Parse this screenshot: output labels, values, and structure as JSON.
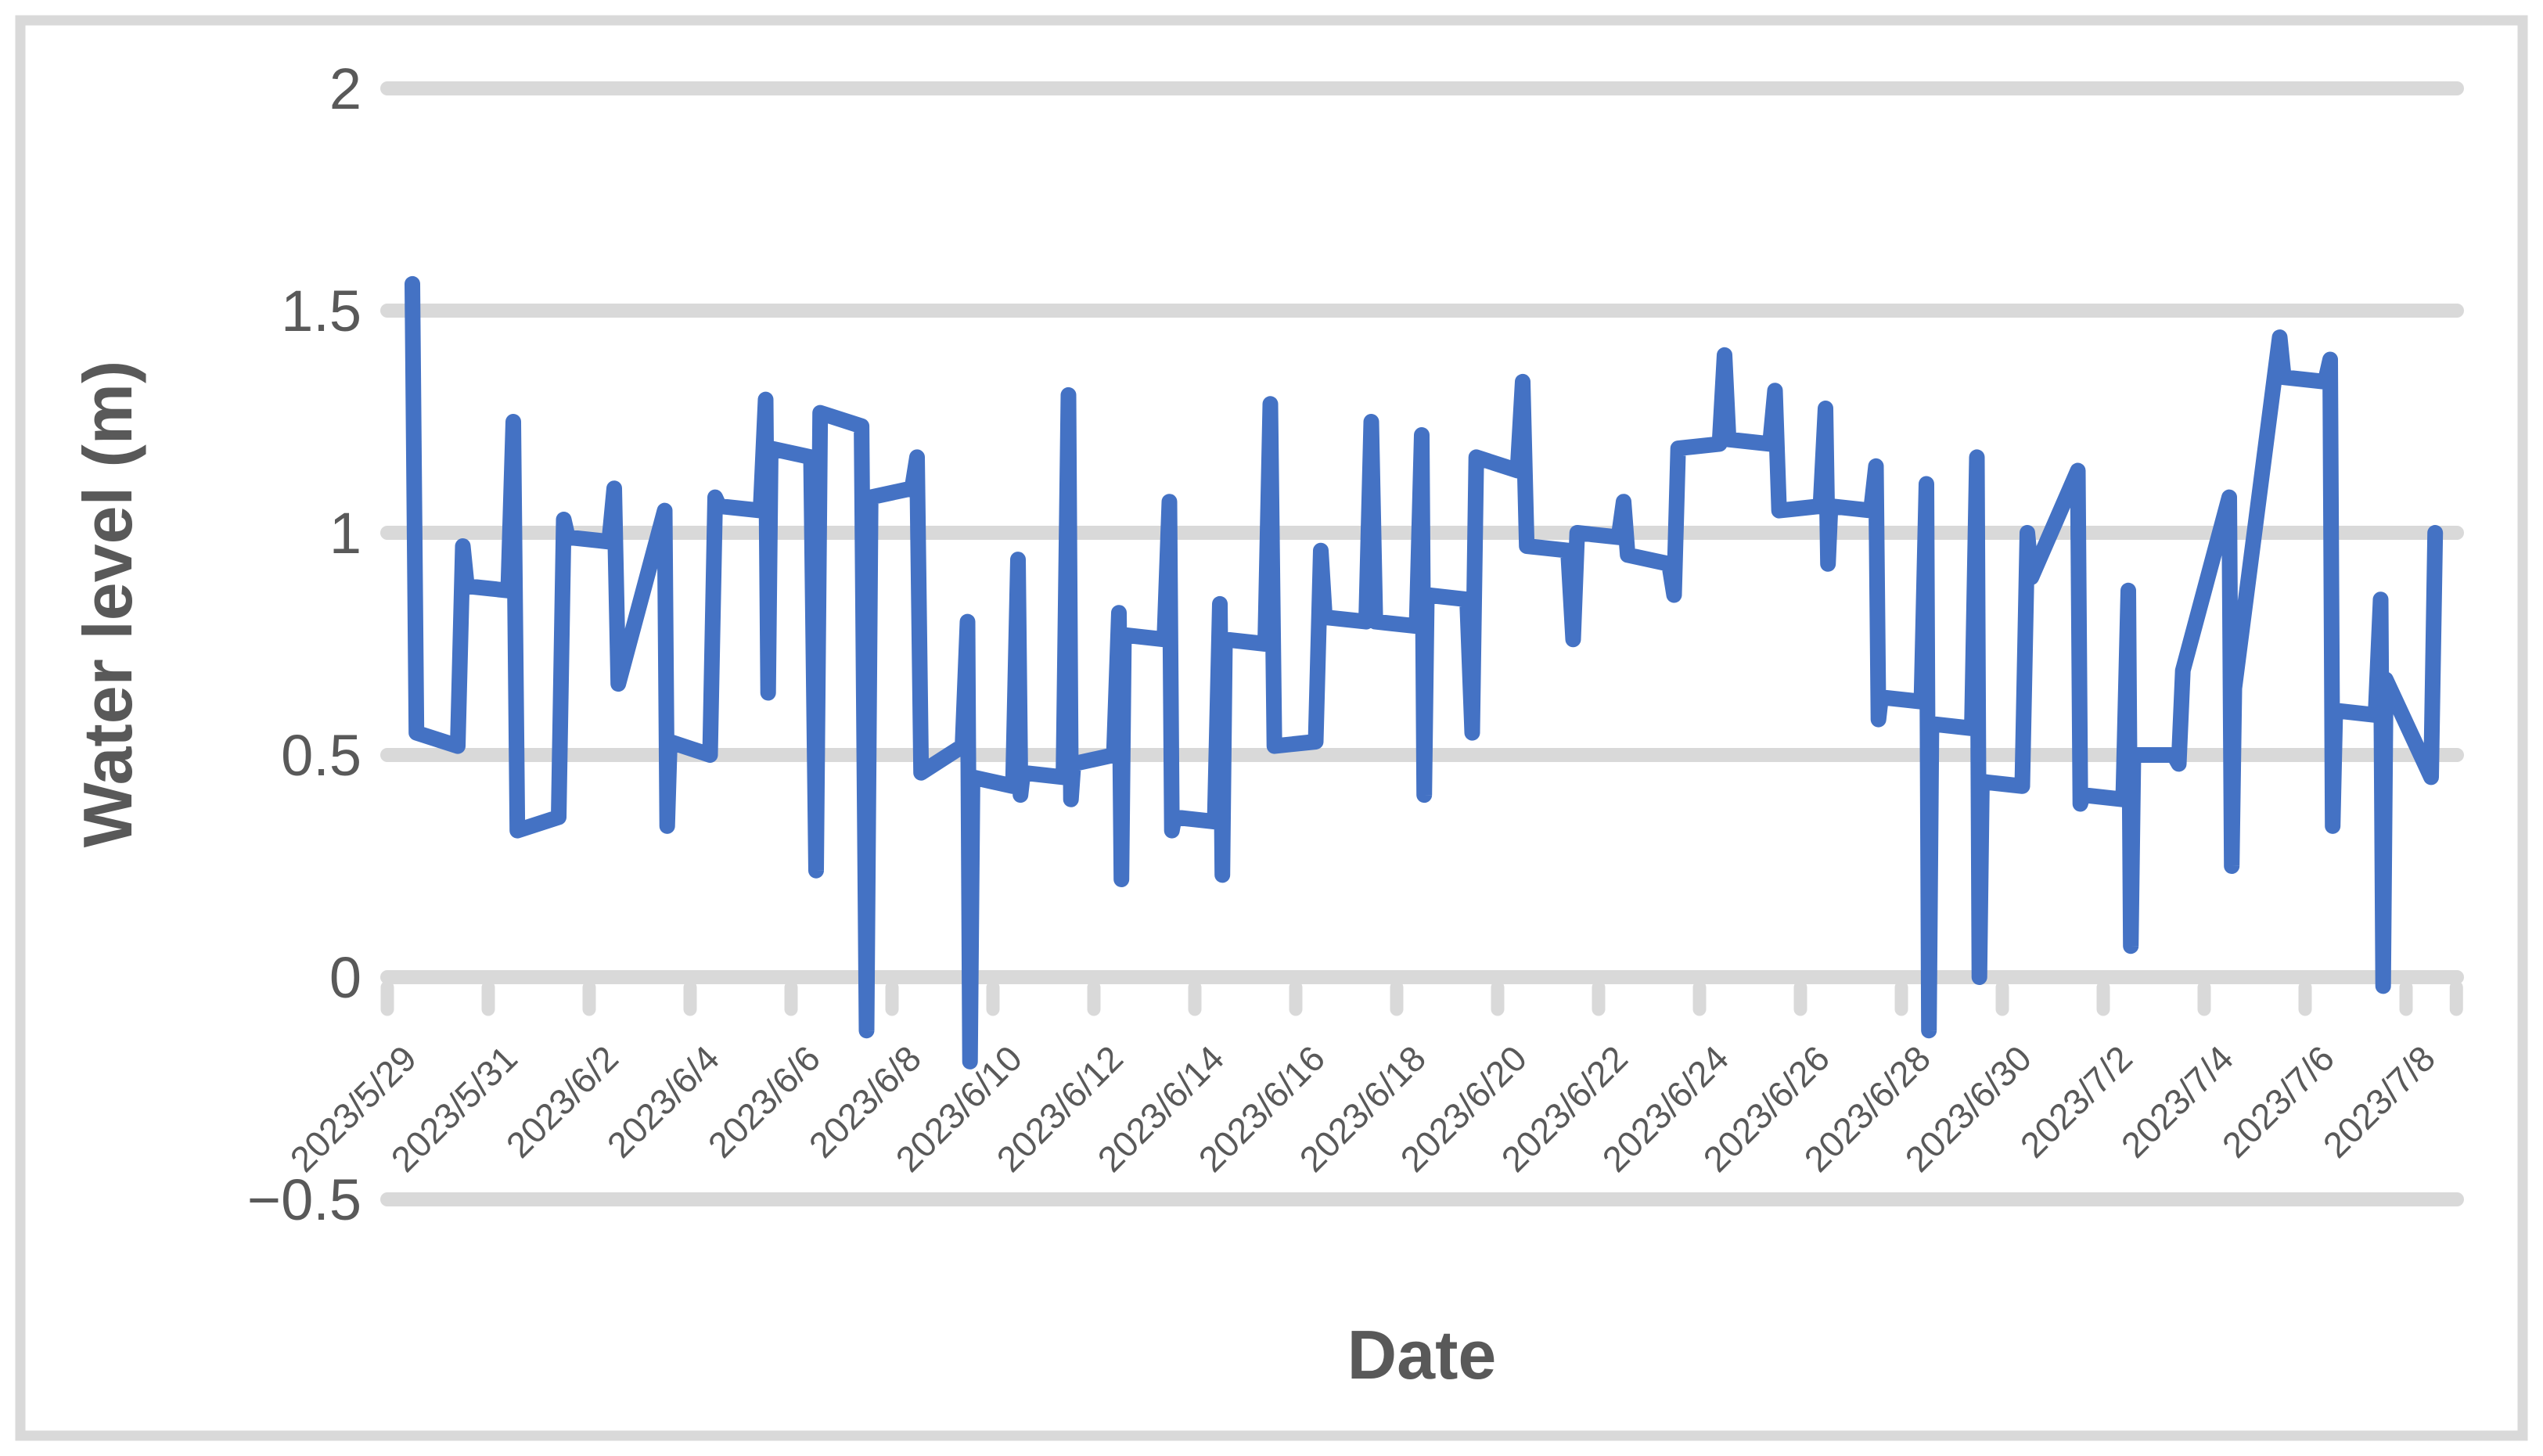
{
  "chart_data": {
    "type": "line",
    "title": "",
    "xlabel": "Date",
    "ylabel": "Water level (m)",
    "ylim": [
      -0.5,
      2
    ],
    "grid": true,
    "legend": "none",
    "y_ticks": [
      {
        "label": "2",
        "value": 2
      },
      {
        "label": "1.5",
        "value": 1.5
      },
      {
        "label": "1",
        "value": 1
      },
      {
        "label": "0.5",
        "value": 0.5
      },
      {
        "label": "0",
        "value": 0
      },
      {
        "label": "−0.5",
        "value": -0.5
      }
    ],
    "x_tick_labels": [
      "2023/5/29",
      "2023/5/31",
      "2023/6/2",
      "2023/6/4",
      "2023/6/6",
      "2023/6/8",
      "2023/6/10",
      "2023/6/12",
      "2023/6/14",
      "2023/6/16",
      "2023/6/18",
      "2023/6/20",
      "2023/6/22",
      "2023/6/24",
      "2023/6/26",
      "2023/6/28",
      "2023/6/30",
      "2023/7/2",
      "2023/7/4",
      "2023/7/6",
      "2023/7/8"
    ],
    "x_tick_interval_days": 2,
    "x_label_rotation_deg": -45,
    "colors": {
      "series": "#4472C4",
      "gridline": "#D9D9D9",
      "axis": "#D9D9D9",
      "labels": "#595959",
      "border": "#D9D9D9",
      "background": "#FFFFFF"
    },
    "series": [
      {
        "name": "Water level",
        "color": "#4472C4",
        "points": [
          [
            0,
            1.56
          ],
          [
            0.08,
            0.55
          ],
          [
            0.9,
            0.52
          ],
          [
            1,
            0.97
          ],
          [
            1.08,
            0.88
          ],
          [
            1.9,
            0.87
          ],
          [
            2,
            1.25
          ],
          [
            2.08,
            0.33
          ],
          [
            2.9,
            0.36
          ],
          [
            3,
            1.03
          ],
          [
            3.08,
            0.99
          ],
          [
            3.9,
            0.98
          ],
          [
            4,
            1.1
          ],
          [
            4.08,
            0.66
          ],
          [
            5,
            1.05
          ],
          [
            5.05,
            0.34
          ],
          [
            5.1,
            0.53
          ],
          [
            5.9,
            0.5
          ],
          [
            6,
            1.08
          ],
          [
            6.08,
            1.06
          ],
          [
            6.9,
            1.05
          ],
          [
            7,
            1.3
          ],
          [
            7.05,
            0.64
          ],
          [
            7.1,
            1.19
          ],
          [
            7.9,
            1.17
          ],
          [
            8,
            0.24
          ],
          [
            8.08,
            1.27
          ],
          [
            8.9,
            1.24
          ],
          [
            9,
            -0.12
          ],
          [
            9.08,
            1.08
          ],
          [
            9.9,
            1.1
          ],
          [
            10,
            1.17
          ],
          [
            10.08,
            0.46
          ],
          [
            10.9,
            0.52
          ],
          [
            11,
            0.8
          ],
          [
            11.05,
            -0.19
          ],
          [
            11.1,
            0.45
          ],
          [
            11.9,
            0.43
          ],
          [
            12,
            0.94
          ],
          [
            12.05,
            0.41
          ],
          [
            12.1,
            0.46
          ],
          [
            12.9,
            0.45
          ],
          [
            13,
            1.31
          ],
          [
            13.05,
            0.4
          ],
          [
            13.1,
            0.48
          ],
          [
            13.9,
            0.5
          ],
          [
            14,
            0.82
          ],
          [
            14.05,
            0.22
          ],
          [
            14.1,
            0.77
          ],
          [
            14.9,
            0.76
          ],
          [
            15,
            1.07
          ],
          [
            15.05,
            0.33
          ],
          [
            15.1,
            0.36
          ],
          [
            15.9,
            0.35
          ],
          [
            16,
            0.84
          ],
          [
            16.05,
            0.23
          ],
          [
            16.1,
            0.76
          ],
          [
            16.9,
            0.75
          ],
          [
            17,
            1.29
          ],
          [
            17.08,
            0.52
          ],
          [
            17.9,
            0.53
          ],
          [
            18,
            0.96
          ],
          [
            18.08,
            0.81
          ],
          [
            18.9,
            0.8
          ],
          [
            19,
            1.25
          ],
          [
            19.08,
            0.8
          ],
          [
            19.9,
            0.79
          ],
          [
            20,
            1.22
          ],
          [
            20.05,
            0.41
          ],
          [
            20.1,
            0.86
          ],
          [
            20.9,
            0.85
          ],
          [
            21,
            0.55
          ],
          [
            21.08,
            1.17
          ],
          [
            21.9,
            1.14
          ],
          [
            22,
            1.34
          ],
          [
            22.08,
            0.97
          ],
          [
            22.9,
            0.96
          ],
          [
            23,
            0.76
          ],
          [
            23.08,
            1.0
          ],
          [
            23.9,
            0.99
          ],
          [
            24,
            1.07
          ],
          [
            24.08,
            0.95
          ],
          [
            24.9,
            0.93
          ],
          [
            25,
            0.86
          ],
          [
            25.08,
            1.19
          ],
          [
            25.9,
            1.2
          ],
          [
            26,
            1.4
          ],
          [
            26.08,
            1.21
          ],
          [
            26.9,
            1.2
          ],
          [
            27,
            1.32
          ],
          [
            27.08,
            1.05
          ],
          [
            27.9,
            1.06
          ],
          [
            28,
            1.28
          ],
          [
            28.05,
            0.93
          ],
          [
            28.1,
            1.06
          ],
          [
            28.9,
            1.05
          ],
          [
            29,
            1.15
          ],
          [
            29.05,
            0.58
          ],
          [
            29.1,
            0.63
          ],
          [
            29.9,
            0.62
          ],
          [
            30,
            1.11
          ],
          [
            30.05,
            -0.12
          ],
          [
            30.1,
            0.57
          ],
          [
            30.9,
            0.56
          ],
          [
            31,
            1.17
          ],
          [
            31.05,
            0.0
          ],
          [
            31.1,
            0.44
          ],
          [
            31.9,
            0.43
          ],
          [
            32,
            1.0
          ],
          [
            32.08,
            0.9
          ],
          [
            33,
            1.14
          ],
          [
            33.05,
            0.39
          ],
          [
            33.1,
            0.41
          ],
          [
            33.9,
            0.4
          ],
          [
            34,
            0.87
          ],
          [
            34.05,
            0.07
          ],
          [
            34.1,
            0.5
          ],
          [
            34.9,
            0.5
          ],
          [
            35,
            0.48
          ],
          [
            35.08,
            0.69
          ],
          [
            36,
            1.08
          ],
          [
            36.05,
            0.25
          ],
          [
            36.1,
            0.65
          ],
          [
            37,
            1.44
          ],
          [
            37.08,
            1.35
          ],
          [
            37.9,
            1.34
          ],
          [
            38,
            1.39
          ],
          [
            38.05,
            0.34
          ],
          [
            38.1,
            0.6
          ],
          [
            38.9,
            0.59
          ],
          [
            39,
            0.85
          ],
          [
            39.05,
            -0.02
          ],
          [
            39.1,
            0.67
          ],
          [
            40,
            0.45
          ],
          [
            40.08,
            1.0
          ]
        ]
      }
    ]
  }
}
